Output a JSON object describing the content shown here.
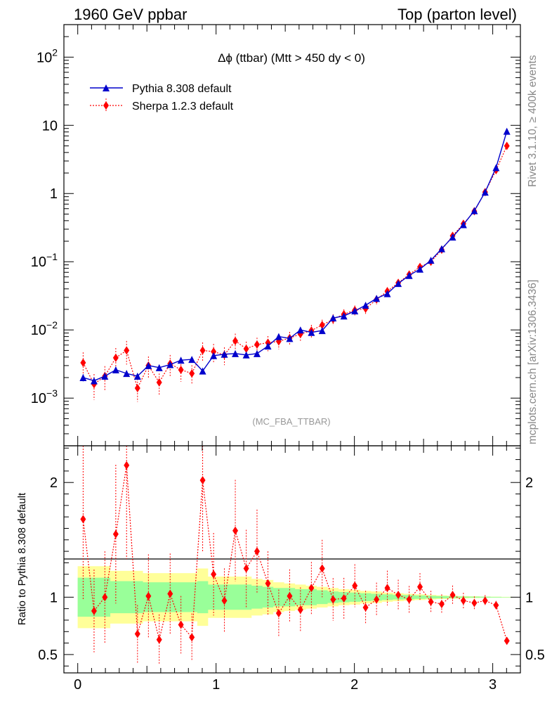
{
  "header": {
    "left_label": "1960 GeV ppbar",
    "right_label": "Top (parton level)"
  },
  "plot_title": "Δϕ (ttbar) (Mtt > 450 dy < 0)",
  "watermark": "(MC_FBA_TTBAR)",
  "side_text_top": "Rivet 3.1.10, ≥ 400k events",
  "side_text_bottom": "mcplots.cern.ch [arXiv:1306.3436]",
  "colors": {
    "pythia": "#0000cc",
    "sherpa": "#ff0000",
    "band_inner": "#99ff99",
    "band_outer": "#ffff99"
  },
  "chart_data": [
    {
      "type": "line",
      "scale": "log",
      "xlim": [
        -0.1,
        3.2
      ],
      "ylim": [
        0.0002,
        300
      ],
      "yticks": [
        "10^-3",
        "10^-2",
        "10^-1",
        "1",
        "10",
        "10^2"
      ],
      "legend_placement": "top-left",
      "x": [
        0.039,
        0.118,
        0.196,
        0.275,
        0.353,
        0.432,
        0.511,
        0.589,
        0.668,
        0.746,
        0.825,
        0.903,
        0.982,
        1.06,
        1.139,
        1.218,
        1.296,
        1.375,
        1.453,
        1.532,
        1.61,
        1.689,
        1.767,
        1.846,
        1.924,
        2.003,
        2.081,
        2.16,
        2.238,
        2.317,
        2.396,
        2.474,
        2.553,
        2.631,
        2.71,
        2.788,
        2.867,
        2.945,
        3.024,
        3.102
      ],
      "series": [
        {
          "name": "Pythia 8.308 default",
          "marker": "triangle",
          "values": [
            0.002,
            0.0018,
            0.0021,
            0.0026,
            0.0023,
            0.0021,
            0.003,
            0.0028,
            0.0031,
            0.0036,
            0.0037,
            0.0025,
            0.0042,
            0.0044,
            0.0045,
            0.0043,
            0.0045,
            0.0058,
            0.008,
            0.0075,
            0.01,
            0.0092,
            0.0098,
            0.015,
            0.016,
            0.019,
            0.023,
            0.029,
            0.034,
            0.048,
            0.063,
            0.078,
            0.105,
            0.155,
            0.23,
            0.35,
            0.56,
            1.05,
            2.4,
            8.2
          ]
        },
        {
          "name": "Sherpa 1.2.3 default",
          "marker": "diamond",
          "values": [
            0.0033,
            0.0016,
            0.0021,
            0.0039,
            0.005,
            0.0014,
            0.003,
            0.0017,
            0.0032,
            0.0026,
            0.0023,
            0.005,
            0.0048,
            0.0043,
            0.0069,
            0.0053,
            0.0061,
            0.0065,
            0.0068,
            0.0076,
            0.0087,
            0.0098,
            0.0118,
            0.0143,
            0.017,
            0.0195,
            0.0205,
            0.028,
            0.037,
            0.049,
            0.065,
            0.084,
            0.1,
            0.15,
            0.24,
            0.36,
            0.55,
            1.05,
            2.2,
            5.0
          ]
        }
      ]
    },
    {
      "type": "line",
      "ylabel": "Ratio to Pythia 8.308 default",
      "xlim": [
        -0.1,
        3.2
      ],
      "ylim": [
        0.34,
        2.32
      ],
      "xticks": [
        0,
        1,
        2,
        3
      ],
      "yticks": [
        0.5,
        1,
        2
      ],
      "reference_line": 1,
      "x": [
        0.039,
        0.118,
        0.196,
        0.275,
        0.353,
        0.432,
        0.511,
        0.589,
        0.668,
        0.746,
        0.825,
        0.903,
        0.982,
        1.06,
        1.139,
        1.218,
        1.296,
        1.375,
        1.453,
        1.532,
        1.61,
        1.689,
        1.767,
        1.846,
        1.924,
        2.003,
        2.081,
        2.16,
        2.238,
        2.317,
        2.396,
        2.474,
        2.553,
        2.631,
        2.71,
        2.788,
        2.867,
        2.945,
        3.024,
        3.102
      ],
      "series": [
        {
          "name": "Sherpa 1.2.3 default",
          "values": [
            1.68,
            0.88,
            1.0,
            1.55,
            2.15,
            0.68,
            1.01,
            0.63,
            1.03,
            0.76,
            0.65,
            2.02,
            1.2,
            0.97,
            1.58,
            1.25,
            1.4,
            1.12,
            0.86,
            1.01,
            0.89,
            1.08,
            1.25,
            0.98,
            0.99,
            1.1,
            0.91,
            0.98,
            1.08,
            1.02,
            0.98,
            1.09,
            0.96,
            0.94,
            1.02,
            0.97,
            0.95,
            0.97,
            0.93,
            0.62
          ]
        }
      ],
      "band_inner_halfwidth": [
        0.17,
        0.17,
        0.17,
        0.14,
        0.14,
        0.14,
        0.13,
        0.13,
        0.13,
        0.13,
        0.13,
        0.14,
        0.11,
        0.11,
        0.11,
        0.11,
        0.1,
        0.09,
        0.08,
        0.08,
        0.07,
        0.07,
        0.06,
        0.05,
        0.045,
        0.04,
        0.035,
        0.03,
        0.025,
        0.02,
        0.018,
        0.015,
        0.012,
        0.01,
        0.008,
        0.006,
        0.005,
        0.004,
        0.003,
        0.002
      ],
      "band_outer_halfwidth": [
        0.27,
        0.27,
        0.27,
        0.23,
        0.23,
        0.23,
        0.21,
        0.21,
        0.21,
        0.21,
        0.21,
        0.25,
        0.18,
        0.18,
        0.18,
        0.18,
        0.16,
        0.15,
        0.13,
        0.12,
        0.11,
        0.1,
        0.09,
        0.08,
        0.07,
        0.065,
        0.055,
        0.05,
        0.04,
        0.035,
        0.03,
        0.025,
        0.02,
        0.016,
        0.013,
        0.01,
        0.008,
        0.006,
        0.004,
        0.003
      ]
    }
  ]
}
